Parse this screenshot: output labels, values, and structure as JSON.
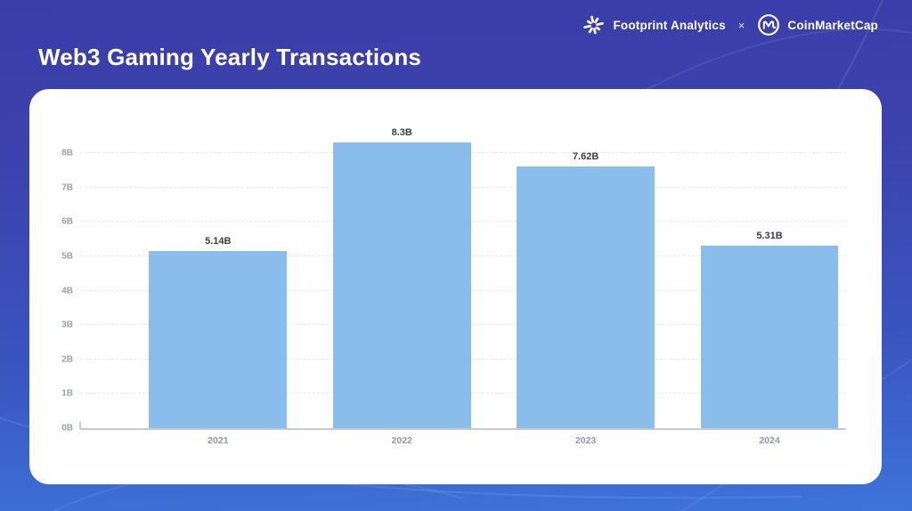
{
  "header": {
    "footprint_label": "Footprint Analytics",
    "separator": "×",
    "cmc_label": "CoinMarketCap"
  },
  "title": "Web3 Gaming Yearly Transactions",
  "chart_data": {
    "type": "bar",
    "title": "Web3 Gaming Yearly Transactions",
    "categories": [
      "2021",
      "2022",
      "2023",
      "2024"
    ],
    "values": [
      5.14,
      8.3,
      7.62,
      5.31
    ],
    "value_labels": [
      "5.14B",
      "8.3B",
      "7.62B",
      "5.31B"
    ],
    "unit": "B",
    "xlabel": "",
    "ylabel": "",
    "ylim": [
      0,
      8.75
    ],
    "y_tick_values": [
      0,
      1,
      2,
      3,
      4,
      5,
      6,
      7,
      8
    ],
    "y_ticks": [
      "0B",
      "1B",
      "2B",
      "3B",
      "4B",
      "5B",
      "6B",
      "7B",
      "8B"
    ],
    "grid": "horizontal-dashed",
    "legend": "none",
    "bar_color": "#8abcec"
  },
  "colors": {
    "bg_top": "#3a3da9",
    "bg_bottom": "#3d74d9",
    "card": "#ffffff",
    "bar": "#8abcec",
    "title_text": "#ffffff",
    "tick_label": "#98a0b0",
    "x_label": "#8f96a8",
    "value_label": "#3b3d42",
    "axis_line": "#c6c9d2",
    "grid_line": "#e7e8ef"
  }
}
